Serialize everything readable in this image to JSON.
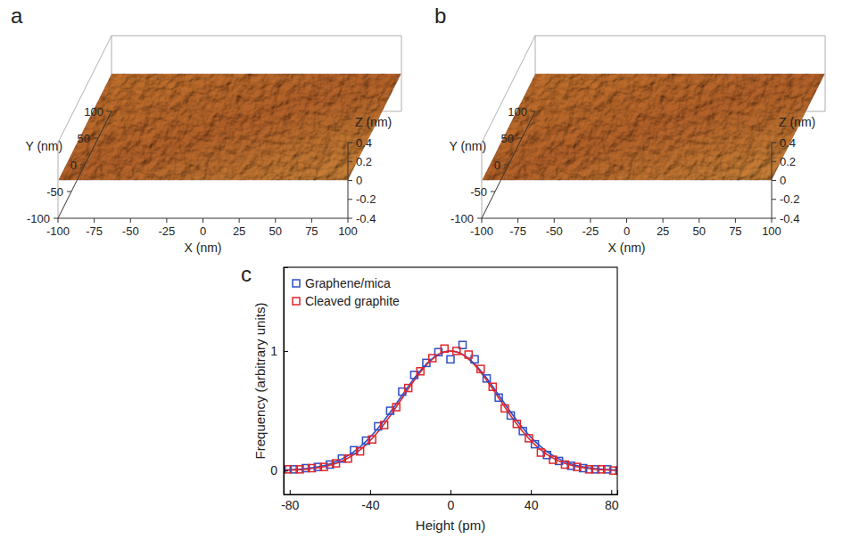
{
  "chart_data": [
    {
      "type": "surface",
      "panel_label": "a",
      "x_label": "X (nm)",
      "y_label": "Y (nm)",
      "z_label": "Z (nm)",
      "xlim": [
        -100,
        100
      ],
      "xticks": [
        -100,
        -75,
        -50,
        -25,
        0,
        25,
        50,
        75,
        100
      ],
      "ylim": [
        -100,
        100
      ],
      "yticks": [
        -100,
        -50,
        0,
        50,
        100
      ],
      "zlim": [
        -0.4,
        0.4
      ],
      "zticks": [
        -0.4,
        -0.2,
        0,
        0.2,
        0.4
      ]
    },
    {
      "type": "surface",
      "panel_label": "b",
      "x_label": "X (nm)",
      "y_label": "Y (nm)",
      "z_label": "Z (nm)",
      "xlim": [
        -100,
        100
      ],
      "xticks": [
        -100,
        -75,
        -50,
        -25,
        0,
        25,
        50,
        75,
        100
      ],
      "ylim": [
        -100,
        100
      ],
      "yticks": [
        -100,
        -50,
        0,
        50,
        100
      ],
      "zlim": [
        -0.4,
        0.4
      ],
      "zticks": [
        -0.4,
        -0.2,
        0,
        0.2,
        0.4
      ]
    },
    {
      "type": "scatter",
      "panel_label": "c",
      "x_label": "Height (pm)",
      "y_label": "Frequency (arbitrary units)",
      "xlim": [
        -83,
        83
      ],
      "xticks": [
        -80,
        -40,
        0,
        40,
        80
      ],
      "ylim": [
        -0.2,
        1.7
      ],
      "yticks": [
        0,
        1
      ],
      "legend": "top-left",
      "marker": "square",
      "series": [
        {
          "name": "Graphene/mica",
          "color": "#2f4fc4",
          "x": [
            -84,
            -78,
            -72,
            -66,
            -60,
            -54,
            -48,
            -42,
            -36,
            -30,
            -24,
            -18,
            -12,
            -6,
            0,
            6,
            12,
            18,
            24,
            30,
            36,
            42,
            48,
            54,
            60,
            66,
            72,
            78,
            84
          ],
          "values": [
            0.01,
            0.01,
            0.02,
            0.03,
            0.05,
            0.1,
            0.17,
            0.25,
            0.37,
            0.5,
            0.66,
            0.8,
            0.9,
            0.99,
            0.93,
            1.05,
            0.93,
            0.77,
            0.61,
            0.46,
            0.33,
            0.22,
            0.13,
            0.08,
            0.04,
            0.02,
            0.01,
            0.01,
            0.0
          ],
          "fit": {
            "x": [
              -84,
              -78,
              -72,
              -66,
              -60,
              -54,
              -48,
              -42,
              -36,
              -30,
              -24,
              -18,
              -12,
              -6,
              0,
              6,
              12,
              18,
              24,
              30,
              36,
              42,
              48,
              54,
              60,
              66,
              72,
              78,
              84
            ],
            "values": [
              0.004,
              0.008,
              0.016,
              0.031,
              0.056,
              0.097,
              0.158,
              0.244,
              0.355,
              0.487,
              0.631,
              0.772,
              0.891,
              0.972,
              1.0,
              0.972,
              0.891,
              0.772,
              0.631,
              0.487,
              0.355,
              0.244,
              0.158,
              0.097,
              0.056,
              0.031,
              0.016,
              0.008,
              0.004
            ]
          }
        },
        {
          "name": "Cleaved graphite",
          "color": "#e0262b",
          "x": [
            -81,
            -75,
            -69,
            -63,
            -57,
            -51,
            -45,
            -39,
            -33,
            -27,
            -21,
            -15,
            -9,
            -3,
            3,
            9,
            15,
            21,
            27,
            33,
            39,
            45,
            51,
            57,
            63,
            69,
            75,
            81
          ],
          "values": [
            0.01,
            0.01,
            0.02,
            0.03,
            0.06,
            0.1,
            0.16,
            0.26,
            0.38,
            0.53,
            0.69,
            0.83,
            0.94,
            1.02,
            1.0,
            0.97,
            0.85,
            0.7,
            0.52,
            0.39,
            0.27,
            0.15,
            0.09,
            0.05,
            0.03,
            0.01,
            0.01,
            0.0
          ],
          "fit": {
            "x": [
              -84,
              -78,
              -72,
              -66,
              -60,
              -54,
              -48,
              -42,
              -36,
              -30,
              -24,
              -18,
              -12,
              -6,
              0,
              6,
              12,
              18,
              24,
              30,
              36,
              42,
              48,
              54,
              60,
              66,
              72,
              78,
              84
            ],
            "values": [
              0.002,
              0.005,
              0.011,
              0.023,
              0.044,
              0.08,
              0.135,
              0.216,
              0.325,
              0.458,
              0.607,
              0.755,
              0.882,
              0.969,
              1.0,
              0.969,
              0.882,
              0.755,
              0.607,
              0.458,
              0.325,
              0.216,
              0.135,
              0.08,
              0.044,
              0.023,
              0.011,
              0.005,
              0.002
            ]
          }
        }
      ]
    }
  ]
}
